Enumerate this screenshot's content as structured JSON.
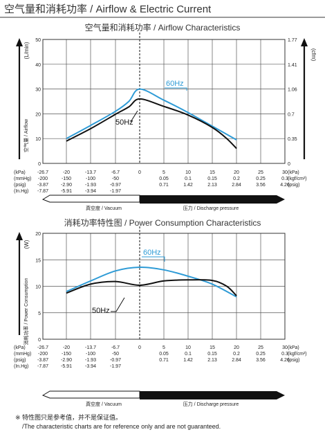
{
  "header": {
    "title": "空气量和消耗功率 / Airflow & Electric Current"
  },
  "footnote": {
    "line1": "※ 特性图只是参考值，并不是保证值。",
    "line2": "/The characteristic charts are for reference only and are not guaranteed."
  },
  "colors": {
    "series_60hz": "#2e9bd6",
    "series_50hz": "#111111",
    "grid": "#555555",
    "arrow_fill": "#111111"
  },
  "chart_data": [
    {
      "type": "line",
      "title": "空气量和消耗功率 / Airflow Characteristics",
      "ylabel": "(L/min)",
      "ylabel_side": "空气量 / Airflow",
      "y2label": "(cfm)",
      "ylim": [
        0,
        50
      ],
      "yticks": [
        "0",
        "10",
        "20",
        "30",
        "40",
        "50"
      ],
      "y2ticks": [
        "0",
        "0.35",
        "0.7",
        "1.06",
        "1.41",
        "1.77"
      ],
      "xlim": [
        -26.7,
        30
      ],
      "grid": true,
      "x_rows": [
        {
          "unit_left": "(kPa)",
          "unit_right": "(kPa)",
          "labels": [
            "-26.7",
            "-20",
            "-13.7",
            "-6.7",
            "0",
            "5",
            "10",
            "15",
            "20",
            "25",
            "30"
          ]
        },
        {
          "unit_left": "(mmHg)",
          "unit_right": "(kgf/cm²)",
          "labels": [
            "-200",
            "-150",
            "-100",
            "-50",
            "",
            "0.05",
            "0.1",
            "0.15",
            "0.2",
            "0.25",
            "0.3"
          ]
        },
        {
          "unit_left": "(psig)",
          "unit_right": "(psig)",
          "labels": [
            "-3.87",
            "-2.90",
            "-1.93",
            "-0.97",
            "",
            "0.71",
            "1.42",
            "2.13",
            "2.84",
            "3.56",
            "4.26"
          ]
        },
        {
          "unit_left": "(In.Hg)",
          "unit_right": "",
          "labels": [
            "-7.87",
            "-5.91",
            "-3.94",
            "-1.97",
            "",
            "",
            "",
            "",
            "",
            "",
            ""
          ]
        }
      ],
      "region_vacuum": "真空度 / Vacuum",
      "region_pressure": "压力 / Discharge pressure",
      "series": [
        {
          "name": "60Hz",
          "color": "#2e9bd6",
          "x": [
            -20,
            -13.7,
            -6.7,
            -3,
            0,
            5,
            10,
            15,
            20
          ],
          "y": [
            10,
            15.3,
            21,
            25,
            30,
            25.5,
            20.5,
            15,
            9.5
          ]
        },
        {
          "name": "50Hz",
          "color": "#111111",
          "x": [
            -20,
            -13.7,
            -6.7,
            -3,
            0,
            5,
            10,
            15,
            18,
            20
          ],
          "y": [
            9,
            14,
            19.8,
            22.8,
            26,
            23,
            19.5,
            14.5,
            10,
            6
          ]
        }
      ]
    },
    {
      "type": "line",
      "title": "消耗功率特性图 / Power Consumption Characteristics",
      "ylabel": "(W)",
      "ylabel_side": "消耗功率 / Power Consumption",
      "ylim": [
        0,
        20
      ],
      "yticks": [
        "0",
        "5",
        "10",
        "15",
        "20"
      ],
      "xlim": [
        -26.7,
        30
      ],
      "grid": true,
      "x_rows": [
        {
          "unit_left": "(kPa)",
          "unit_right": "(kPa)",
          "labels": [
            "-26.7",
            "-20",
            "-13.7",
            "-6.7",
            "0",
            "5",
            "10",
            "15",
            "20",
            "25",
            "30"
          ]
        },
        {
          "unit_left": "(mmHg)",
          "unit_right": "(kgf/cm²)",
          "labels": [
            "-200",
            "-150",
            "-100",
            "-50",
            "",
            "0.05",
            "0.1",
            "0.15",
            "0.2",
            "0.25",
            "0.3"
          ]
        },
        {
          "unit_left": "(psig)",
          "unit_right": "(psig)",
          "labels": [
            "-3.87",
            "-2.90",
            "-1.93",
            "-0.97",
            "",
            "0.71",
            "1.42",
            "2.13",
            "2.84",
            "3.56",
            "4.26"
          ]
        },
        {
          "unit_left": "(In.Hg)",
          "unit_right": "",
          "labels": [
            "-7.87",
            "-5.91",
            "-3.94",
            "-1.97",
            "",
            "",
            "",
            "",
            "",
            "",
            ""
          ]
        }
      ],
      "region_vacuum": "真空度 / Vacuum",
      "region_pressure": "压力 / Discharge pressure",
      "series": [
        {
          "name": "60Hz",
          "color": "#2e9bd6",
          "x": [
            -20,
            -13.7,
            -6.7,
            0,
            5,
            10,
            15,
            20
          ],
          "y": [
            9,
            11,
            12.9,
            13.6,
            13.1,
            11.9,
            10.4,
            8
          ]
        },
        {
          "name": "50Hz",
          "color": "#111111",
          "x": [
            -20,
            -13.7,
            -6.7,
            0,
            5,
            10,
            15,
            18,
            20
          ],
          "y": [
            8.7,
            10.4,
            10.9,
            10.2,
            11,
            11.2,
            11.1,
            10,
            8.2
          ]
        }
      ]
    }
  ]
}
